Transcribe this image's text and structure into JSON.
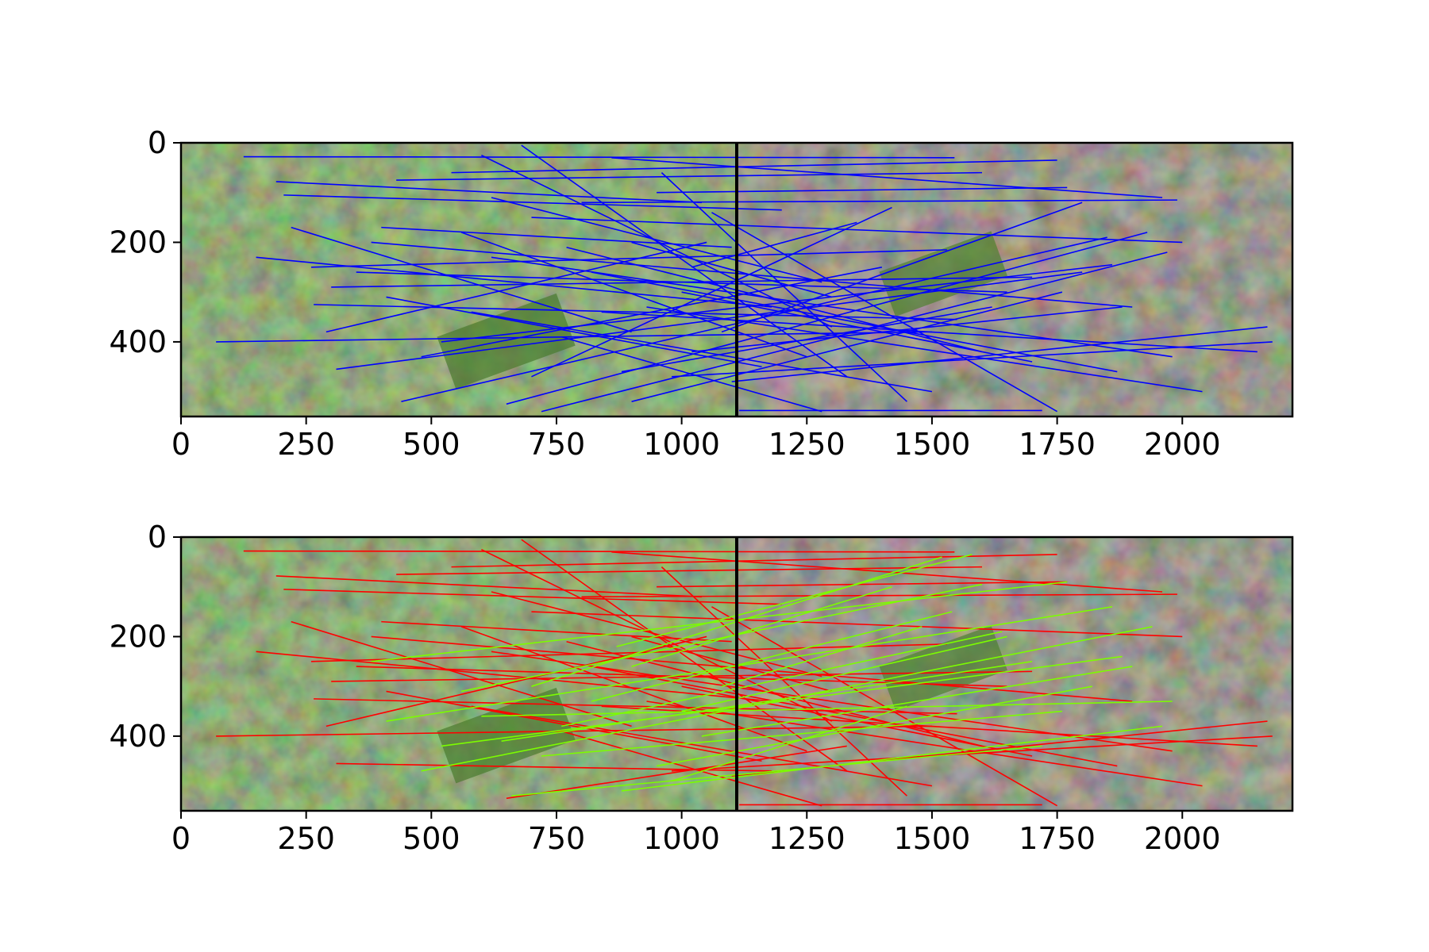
{
  "chart_data": [
    {
      "type": "image-keypoint-matches",
      "xlim": [
        0,
        2220
      ],
      "ylim": [
        550,
        0
      ],
      "xticks": [
        0,
        250,
        500,
        750,
        1000,
        1250,
        1500,
        1750,
        2000
      ],
      "yticks": [
        0,
        200,
        400
      ],
      "xtick_labels": [
        "0",
        "250",
        "500",
        "750",
        "1000",
        "1250",
        "1500",
        "1750",
        "2000"
      ],
      "ytick_labels": [
        "0",
        "200",
        "400"
      ],
      "image_split_x": 1110,
      "grid": false,
      "match_color": "#0000ff",
      "matches": [
        [
          125,
          28,
          1545,
          30
        ],
        [
          190,
          78,
          1040,
          120
        ],
        [
          205,
          105,
          1200,
          135
        ],
        [
          260,
          250,
          1530,
          215
        ],
        [
          265,
          325,
          1550,
          355
        ],
        [
          300,
          290,
          1700,
          270
        ],
        [
          310,
          455,
          1800,
          260
        ],
        [
          380,
          200,
          1900,
          330
        ],
        [
          400,
          170,
          1100,
          210
        ],
        [
          430,
          75,
          1600,
          60
        ],
        [
          440,
          520,
          1850,
          190
        ],
        [
          520,
          400,
          1860,
          245
        ],
        [
          540,
          60,
          1750,
          35
        ],
        [
          580,
          340,
          1500,
          500
        ],
        [
          600,
          25,
          1300,
          370
        ],
        [
          620,
          230,
          1980,
          430
        ],
        [
          650,
          525,
          1930,
          180
        ],
        [
          680,
          5,
          1330,
          470
        ],
        [
          700,
          150,
          2000,
          200
        ],
        [
          720,
          540,
          1970,
          220
        ],
        [
          760,
          390,
          1280,
          540
        ],
        [
          800,
          120,
          1990,
          115
        ],
        [
          820,
          260,
          1870,
          460
        ],
        [
          860,
          30,
          1960,
          110
        ],
        [
          880,
          460,
          1620,
          330
        ],
        [
          900,
          200,
          1300,
          310
        ],
        [
          930,
          330,
          2040,
          500
        ],
        [
          950,
          100,
          1770,
          90
        ],
        [
          980,
          470,
          2180,
          400
        ],
        [
          1000,
          300,
          1700,
          440
        ],
        [
          1020,
          250,
          1350,
          160
        ],
        [
          1060,
          140,
          1750,
          540
        ],
        [
          1080,
          380,
          1800,
          120
        ],
        [
          70,
          400,
          1500,
          380
        ],
        [
          350,
          260,
          1650,
          300
        ],
        [
          480,
          430,
          1400,
          250
        ],
        [
          560,
          180,
          1250,
          430
        ],
        [
          840,
          340,
          2150,
          420
        ],
        [
          1115,
          538,
          1720,
          538
        ],
        [
          960,
          60,
          1450,
          520
        ],
        [
          220,
          170,
          900,
          380
        ],
        [
          290,
          380,
          1050,
          200
        ],
        [
          410,
          310,
          1160,
          450
        ],
        [
          700,
          470,
          1420,
          130
        ],
        [
          620,
          110,
          1280,
          280
        ],
        [
          770,
          210,
          1600,
          420
        ],
        [
          1100,
          480,
          2170,
          370
        ],
        [
          900,
          520,
          1760,
          300
        ],
        [
          150,
          230,
          1180,
          330
        ],
        [
          1020,
          420,
          1880,
          330
        ]
      ]
    },
    {
      "type": "image-keypoint-matches",
      "xlim": [
        0,
        2220
      ],
      "ylim": [
        550,
        0
      ],
      "xticks": [
        0,
        250,
        500,
        750,
        1000,
        1250,
        1500,
        1750,
        2000
      ],
      "yticks": [
        0,
        200,
        400
      ],
      "xtick_labels": [
        "0",
        "250",
        "500",
        "750",
        "1000",
        "1250",
        "1500",
        "1750",
        "2000"
      ],
      "ytick_labels": [
        "0",
        "200",
        "400"
      ],
      "image_split_x": 1110,
      "grid": false,
      "outlier_color": "#ff0000",
      "inlier_color": "#7cfc00",
      "outliers": [
        [
          125,
          28,
          1545,
          30
        ],
        [
          190,
          78,
          1040,
          120
        ],
        [
          205,
          105,
          1200,
          135
        ],
        [
          260,
          250,
          1530,
          215
        ],
        [
          265,
          325,
          1550,
          355
        ],
        [
          300,
          290,
          1700,
          270
        ],
        [
          380,
          200,
          1900,
          330
        ],
        [
          400,
          170,
          1100,
          210
        ],
        [
          430,
          75,
          1600,
          60
        ],
        [
          540,
          60,
          1750,
          35
        ],
        [
          580,
          340,
          1500,
          500
        ],
        [
          600,
          25,
          1300,
          370
        ],
        [
          620,
          230,
          1980,
          430
        ],
        [
          680,
          5,
          1330,
          470
        ],
        [
          700,
          150,
          2000,
          200
        ],
        [
          760,
          390,
          1280,
          540
        ],
        [
          800,
          120,
          1990,
          115
        ],
        [
          820,
          260,
          1870,
          460
        ],
        [
          860,
          30,
          1960,
          110
        ],
        [
          900,
          200,
          1300,
          310
        ],
        [
          930,
          330,
          2040,
          500
        ],
        [
          950,
          100,
          1770,
          90
        ],
        [
          980,
          470,
          2180,
          400
        ],
        [
          1000,
          300,
          1700,
          440
        ],
        [
          1060,
          140,
          1750,
          540
        ],
        [
          70,
          400,
          1500,
          380
        ],
        [
          350,
          260,
          1650,
          300
        ],
        [
          560,
          180,
          1250,
          430
        ],
        [
          840,
          340,
          2150,
          420
        ],
        [
          1115,
          538,
          1720,
          538
        ],
        [
          960,
          60,
          1450,
          520
        ],
        [
          220,
          170,
          900,
          380
        ],
        [
          290,
          380,
          1050,
          200
        ],
        [
          410,
          310,
          1160,
          450
        ],
        [
          620,
          110,
          1280,
          280
        ],
        [
          770,
          210,
          1600,
          420
        ],
        [
          1100,
          480,
          2170,
          370
        ],
        [
          150,
          230,
          1180,
          330
        ],
        [
          310,
          455,
          1180,
          470
        ],
        [
          650,
          525,
          1330,
          420
        ]
      ],
      "inliers": [
        [
          380,
          250,
          1770,
          90
        ],
        [
          410,
          370,
          1860,
          140
        ],
        [
          480,
          470,
          1940,
          180
        ],
        [
          520,
          420,
          1880,
          240
        ],
        [
          560,
          310,
          1600,
          95
        ],
        [
          600,
          360,
          1980,
          330
        ],
        [
          640,
          410,
          1700,
          250
        ],
        [
          700,
          300,
          1520,
          40
        ],
        [
          720,
          440,
          1760,
          350
        ],
        [
          760,
          380,
          1640,
          190
        ],
        [
          820,
          330,
          1540,
          150
        ],
        [
          880,
          510,
          1960,
          380
        ],
        [
          900,
          260,
          1420,
          100
        ],
        [
          950,
          460,
          1820,
          300
        ],
        [
          1000,
          350,
          1650,
          200
        ],
        [
          1040,
          400,
          1900,
          260
        ],
        [
          1080,
          300,
          1480,
          180
        ],
        [
          870,
          220,
          1580,
          35
        ],
        [
          660,
          520,
          1720,
          420
        ],
        [
          980,
          490,
          1450,
          340
        ]
      ]
    }
  ]
}
